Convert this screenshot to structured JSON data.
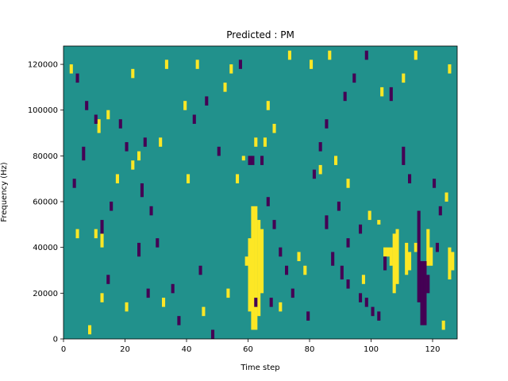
{
  "chart_data": {
    "type": "heatmap",
    "title": "Predicted : PM",
    "xlabel": "Time step",
    "ylabel": "Frequency (Hz)",
    "xlim": [
      0,
      128
    ],
    "ylim": [
      0,
      128000
    ],
    "xticks": [
      0,
      20,
      40,
      60,
      80,
      100,
      120
    ],
    "yticks": [
      0,
      20000,
      40000,
      60000,
      80000,
      100000,
      120000
    ],
    "xtick_labels": [
      "0",
      "20",
      "40",
      "60",
      "80",
      "100",
      "120"
    ],
    "ytick_labels": [
      "0",
      "20000",
      "40000",
      "60000",
      "80000",
      "100000",
      "120000"
    ],
    "n_time_bins": 128,
    "n_freq_bins": 64,
    "freq_bin_hz": 2000,
    "color_map": {
      "-1": "#440154",
      "0": "#21918c",
      "1": "#fde725"
    },
    "background_value": 0,
    "cells": [
      {
        "t": 61,
        "f0": 2,
        "f1": 29,
        "v": 1
      },
      {
        "t": 62,
        "f0": 2,
        "f1": 29,
        "v": 1
      },
      {
        "t": 63,
        "f0": 5,
        "f1": 26,
        "v": 1
      },
      {
        "t": 64,
        "f0": 10,
        "f1": 24,
        "v": 1
      },
      {
        "t": 60,
        "f0": 6,
        "f1": 22,
        "v": 1
      },
      {
        "t": 59,
        "f0": 16,
        "f1": 18,
        "v": 1
      },
      {
        "t": 107,
        "f0": 10,
        "f1": 23,
        "v": 1
      },
      {
        "t": 108,
        "f0": 12,
        "f1": 24,
        "v": 1
      },
      {
        "t": 106,
        "f0": 16,
        "f1": 20,
        "v": 1
      },
      {
        "t": 111,
        "f0": 14,
        "f1": 21,
        "v": 1
      },
      {
        "t": 112,
        "f0": 15,
        "f1": 19,
        "v": 1
      },
      {
        "t": 118,
        "f0": 16,
        "f1": 24,
        "v": 1
      },
      {
        "t": 119,
        "f0": 16,
        "f1": 20,
        "v": 1
      },
      {
        "t": 125,
        "f0": 13,
        "f1": 20,
        "v": 1
      },
      {
        "t": 126,
        "f0": 15,
        "f1": 19,
        "v": 1
      },
      {
        "t": 104,
        "f0": 18,
        "f1": 20,
        "v": 1
      },
      {
        "t": 105,
        "f0": 18,
        "f1": 20,
        "v": 1
      },
      {
        "t": 102,
        "f0": 25,
        "f1": 26,
        "v": 1
      },
      {
        "t": 99,
        "f0": 26,
        "f1": 28,
        "v": 1
      },
      {
        "t": 92,
        "f0": 33,
        "f1": 35,
        "v": 1
      },
      {
        "t": 88,
        "f0": 38,
        "f1": 40,
        "v": 1
      },
      {
        "t": 83,
        "f0": 36,
        "f1": 38,
        "v": 1
      },
      {
        "t": 56,
        "f0": 34,
        "f1": 36,
        "v": 1
      },
      {
        "t": 58,
        "f0": 39,
        "f1": 40,
        "v": 1
      },
      {
        "t": 62,
        "f0": 42,
        "f1": 44,
        "v": 1
      },
      {
        "t": 65,
        "f0": 42,
        "f1": 44,
        "v": 1
      },
      {
        "t": 68,
        "f0": 45,
        "f1": 47,
        "v": 1
      },
      {
        "t": 40,
        "f0": 34,
        "f1": 36,
        "v": 1
      },
      {
        "t": 39,
        "f0": 50,
        "f1": 52,
        "v": 1
      },
      {
        "t": 31,
        "f0": 42,
        "f1": 44,
        "v": 1
      },
      {
        "t": 24,
        "f0": 39,
        "f1": 41,
        "v": 1
      },
      {
        "t": 22,
        "f0": 37,
        "f1": 39,
        "v": 1
      },
      {
        "t": 11,
        "f0": 45,
        "f1": 48,
        "v": 1
      },
      {
        "t": 14,
        "f0": 48,
        "f1": 50,
        "v": 1
      },
      {
        "t": 10,
        "f0": 22,
        "f1": 24,
        "v": 1
      },
      {
        "t": 12,
        "f0": 20,
        "f1": 23,
        "v": 1
      },
      {
        "t": 4,
        "f0": 22,
        "f1": 24,
        "v": 1
      },
      {
        "t": 2,
        "f0": 58,
        "f1": 60,
        "v": 1
      },
      {
        "t": 22,
        "f0": 57,
        "f1": 59,
        "v": 1
      },
      {
        "t": 33,
        "f0": 59,
        "f1": 61,
        "v": 1
      },
      {
        "t": 43,
        "f0": 59,
        "f1": 61,
        "v": 1
      },
      {
        "t": 52,
        "f0": 54,
        "f1": 56,
        "v": 1
      },
      {
        "t": 54,
        "f0": 58,
        "f1": 60,
        "v": 1
      },
      {
        "t": 66,
        "f0": 50,
        "f1": 52,
        "v": 1
      },
      {
        "t": 73,
        "f0": 61,
        "f1": 63,
        "v": 1
      },
      {
        "t": 80,
        "f0": 59,
        "f1": 61,
        "v": 1
      },
      {
        "t": 86,
        "f0": 61,
        "f1": 63,
        "v": 1
      },
      {
        "t": 103,
        "f0": 53,
        "f1": 55,
        "v": 1
      },
      {
        "t": 110,
        "f0": 56,
        "f1": 58,
        "v": 1
      },
      {
        "t": 114,
        "f0": 61,
        "f1": 63,
        "v": 1
      },
      {
        "t": 125,
        "f0": 58,
        "f1": 60,
        "v": 1
      },
      {
        "t": 20,
        "f0": 6,
        "f1": 8,
        "v": 1
      },
      {
        "t": 32,
        "f0": 7,
        "f1": 9,
        "v": 1
      },
      {
        "t": 45,
        "f0": 5,
        "f1": 7,
        "v": 1
      },
      {
        "t": 53,
        "f0": 9,
        "f1": 11,
        "v": 1
      },
      {
        "t": 70,
        "f0": 6,
        "f1": 8,
        "v": 1
      },
      {
        "t": 76,
        "f0": 17,
        "f1": 19,
        "v": 1
      },
      {
        "t": 78,
        "f0": 14,
        "f1": 16,
        "v": 1
      },
      {
        "t": 97,
        "f0": 12,
        "f1": 14,
        "v": 1
      },
      {
        "t": 114,
        "f0": 19,
        "f1": 21,
        "v": 1
      },
      {
        "t": 116,
        "f0": 6,
        "f1": 8,
        "v": 1
      },
      {
        "t": 123,
        "f0": 2,
        "f1": 4,
        "v": 1
      },
      {
        "t": 124,
        "f0": 30,
        "f1": 32,
        "v": 1
      },
      {
        "t": 17,
        "f0": 34,
        "f1": 36,
        "v": 1
      },
      {
        "t": 8,
        "f0": 1,
        "f1": 3,
        "v": 1
      },
      {
        "t": 62,
        "f0": 7,
        "f1": 9,
        "v": -1
      },
      {
        "t": 116,
        "f0": 3,
        "f1": 17,
        "v": -1
      },
      {
        "t": 117,
        "f0": 3,
        "f1": 17,
        "v": -1
      },
      {
        "t": 115,
        "f0": 8,
        "f1": 28,
        "v": -1
      },
      {
        "t": 118,
        "f0": 10,
        "f1": 14,
        "v": -1
      },
      {
        "t": 60,
        "f0": 38,
        "f1": 40,
        "v": -1
      },
      {
        "t": 61,
        "f0": 38,
        "f1": 40,
        "v": -1
      },
      {
        "t": 64,
        "f0": 38,
        "f1": 40,
        "v": -1
      },
      {
        "t": 87,
        "f0": 16,
        "f1": 19,
        "v": -1
      },
      {
        "t": 89,
        "f0": 28,
        "f1": 30,
        "v": -1
      },
      {
        "t": 85,
        "f0": 24,
        "f1": 27,
        "v": -1
      },
      {
        "t": 92,
        "f0": 20,
        "f1": 22,
        "v": -1
      },
      {
        "t": 90,
        "f0": 13,
        "f1": 16,
        "v": -1
      },
      {
        "t": 96,
        "f0": 8,
        "f1": 10,
        "v": -1
      },
      {
        "t": 98,
        "f0": 7,
        "f1": 9,
        "v": -1
      },
      {
        "t": 100,
        "f0": 5,
        "f1": 7,
        "v": -1
      },
      {
        "t": 102,
        "f0": 4,
        "f1": 6,
        "v": -1
      },
      {
        "t": 104,
        "f0": 15,
        "f1": 18,
        "v": -1
      },
      {
        "t": 106,
        "f0": 52,
        "f1": 55,
        "v": -1
      },
      {
        "t": 110,
        "f0": 38,
        "f1": 42,
        "v": -1
      },
      {
        "t": 112,
        "f0": 34,
        "f1": 36,
        "v": -1
      },
      {
        "t": 120,
        "f0": 33,
        "f1": 35,
        "v": -1
      },
      {
        "t": 121,
        "f0": 19,
        "f1": 21,
        "v": -1
      },
      {
        "t": 122,
        "f0": 27,
        "f1": 29,
        "v": -1
      },
      {
        "t": 44,
        "f0": 14,
        "f1": 16,
        "v": -1
      },
      {
        "t": 48,
        "f0": 0,
        "f1": 2,
        "v": -1
      },
      {
        "t": 35,
        "f0": 10,
        "f1": 12,
        "v": -1
      },
      {
        "t": 30,
        "f0": 20,
        "f1": 22,
        "v": -1
      },
      {
        "t": 28,
        "f0": 27,
        "f1": 29,
        "v": -1
      },
      {
        "t": 25,
        "f0": 31,
        "f1": 34,
        "v": -1
      },
      {
        "t": 20,
        "f0": 41,
        "f1": 43,
        "v": -1
      },
      {
        "t": 18,
        "f0": 46,
        "f1": 48,
        "v": -1
      },
      {
        "t": 26,
        "f0": 42,
        "f1": 44,
        "v": -1
      },
      {
        "t": 10,
        "f0": 47,
        "f1": 49,
        "v": -1
      },
      {
        "t": 7,
        "f0": 50,
        "f1": 52,
        "v": -1
      },
      {
        "t": 4,
        "f0": 56,
        "f1": 58,
        "v": -1
      },
      {
        "t": 6,
        "f0": 39,
        "f1": 42,
        "v": -1
      },
      {
        "t": 3,
        "f0": 33,
        "f1": 35,
        "v": -1
      },
      {
        "t": 12,
        "f0": 23,
        "f1": 26,
        "v": -1
      },
      {
        "t": 15,
        "f0": 28,
        "f1": 30,
        "v": -1
      },
      {
        "t": 24,
        "f0": 18,
        "f1": 21,
        "v": -1
      },
      {
        "t": 27,
        "f0": 9,
        "f1": 11,
        "v": -1
      },
      {
        "t": 37,
        "f0": 3,
        "f1": 5,
        "v": -1
      },
      {
        "t": 42,
        "f0": 47,
        "f1": 49,
        "v": -1
      },
      {
        "t": 46,
        "f0": 51,
        "f1": 53,
        "v": -1
      },
      {
        "t": 50,
        "f0": 40,
        "f1": 42,
        "v": -1
      },
      {
        "t": 57,
        "f0": 59,
        "f1": 61,
        "v": -1
      },
      {
        "t": 66,
        "f0": 29,
        "f1": 31,
        "v": -1
      },
      {
        "t": 68,
        "f0": 24,
        "f1": 26,
        "v": -1
      },
      {
        "t": 70,
        "f0": 18,
        "f1": 20,
        "v": -1
      },
      {
        "t": 72,
        "f0": 14,
        "f1": 16,
        "v": -1
      },
      {
        "t": 74,
        "f0": 9,
        "f1": 11,
        "v": -1
      },
      {
        "t": 79,
        "f0": 4,
        "f1": 6,
        "v": -1
      },
      {
        "t": 81,
        "f0": 35,
        "f1": 37,
        "v": -1
      },
      {
        "t": 83,
        "f0": 41,
        "f1": 43,
        "v": -1
      },
      {
        "t": 85,
        "f0": 46,
        "f1": 48,
        "v": -1
      },
      {
        "t": 91,
        "f0": 52,
        "f1": 54,
        "v": -1
      },
      {
        "t": 94,
        "f0": 56,
        "f1": 58,
        "v": -1
      },
      {
        "t": 98,
        "f0": 61,
        "f1": 63,
        "v": -1
      },
      {
        "t": 67,
        "f0": 7,
        "f1": 9,
        "v": -1
      },
      {
        "t": 96,
        "f0": 23,
        "f1": 25,
        "v": -1
      },
      {
        "t": 12,
        "f0": 8,
        "f1": 10,
        "v": 1
      },
      {
        "t": 14,
        "f0": 12,
        "f1": 14,
        "v": -1
      },
      {
        "t": 92,
        "f0": 11,
        "f1": 13,
        "v": -1
      }
    ]
  }
}
